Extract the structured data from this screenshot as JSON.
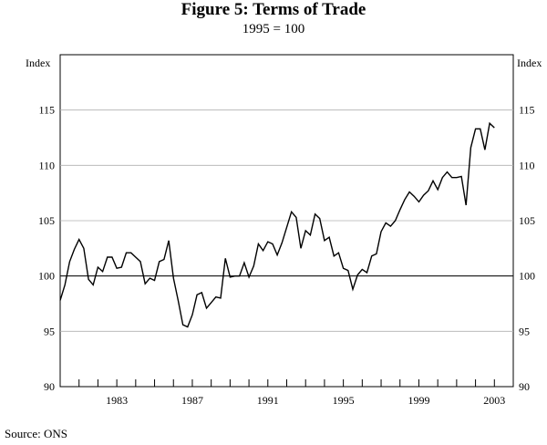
{
  "title": "Figure 5: Terms of Trade",
  "subtitle": "1995 = 100",
  "source": "Source:  ONS",
  "chart_data": {
    "type": "line",
    "ylabel_left": "Index",
    "ylabel_right": "Index",
    "ylim": [
      90,
      120
    ],
    "yticks": [
      90,
      95,
      100,
      105,
      110,
      115
    ],
    "xlim": [
      1980,
      2004
    ],
    "xticks": [
      1983,
      1987,
      1991,
      1995,
      1999,
      2003
    ],
    "reference_line": 100,
    "series": [
      {
        "x": [
          1980.0,
          1980.25,
          1980.5,
          1980.75,
          1981.0,
          1981.25,
          1981.5,
          1981.75,
          1982.0,
          1982.25,
          1982.5,
          1982.75,
          1983.0,
          1983.25,
          1983.5,
          1983.75,
          1984.0,
          1984.25,
          1984.5,
          1984.75,
          1985.0,
          1985.25,
          1985.5,
          1985.75,
          1986.0,
          1986.25,
          1986.5,
          1986.75,
          1987.0,
          1987.25,
          1987.5,
          1987.75,
          1988.0,
          1988.25,
          1988.5,
          1988.75,
          1989.0,
          1989.25,
          1989.5,
          1989.75,
          1990.0,
          1990.25,
          1990.5,
          1990.75,
          1991.0,
          1991.25,
          1991.5,
          1991.75,
          1992.0,
          1992.25,
          1992.5,
          1992.75,
          1993.0,
          1993.25,
          1993.5,
          1993.75,
          1994.0,
          1994.25,
          1994.5,
          1994.75,
          1995.0,
          1995.25,
          1995.5,
          1995.75,
          1996.0,
          1996.25,
          1996.5,
          1996.75,
          1997.0,
          1997.25,
          1997.5,
          1997.75,
          1998.0,
          1998.25,
          1998.5,
          1998.75,
          1999.0,
          1999.25,
          1999.5,
          1999.75,
          2000.0,
          2000.25,
          2000.5,
          2000.75,
          2001.0,
          2001.25,
          2001.5,
          2001.75,
          2002.0,
          2002.25,
          2002.5,
          2002.75,
          2003.0
        ],
        "values": [
          97.8,
          99.2,
          101.3,
          102.4,
          103.3,
          102.5,
          99.7,
          99.2,
          100.8,
          100.4,
          101.7,
          101.7,
          100.7,
          100.8,
          102.1,
          102.1,
          101.7,
          101.3,
          99.3,
          99.8,
          99.6,
          101.3,
          101.5,
          103.2,
          99.8,
          97.8,
          95.6,
          95.4,
          96.5,
          98.3,
          98.5,
          97.1,
          97.6,
          98.1,
          98.0,
          101.6,
          99.9,
          100.0,
          100.0,
          101.2,
          99.9,
          100.9,
          102.9,
          102.3,
          103.1,
          102.9,
          101.9,
          103.0,
          104.4,
          105.8,
          105.3,
          102.5,
          104.1,
          103.7,
          105.6,
          105.2,
          103.2,
          103.5,
          101.8,
          102.1,
          100.7,
          100.5,
          98.8,
          100.1,
          100.6,
          100.3,
          101.8,
          102.0,
          104.0,
          104.8,
          104.5,
          105.0,
          106.0,
          106.9,
          107.6,
          107.2,
          106.7,
          107.3,
          107.7,
          108.6,
          107.8,
          108.9,
          109.4,
          108.9,
          108.9,
          109.0,
          106.4,
          111.6,
          113.3,
          113.3,
          111.4,
          113.8,
          113.4
        ]
      }
    ]
  }
}
